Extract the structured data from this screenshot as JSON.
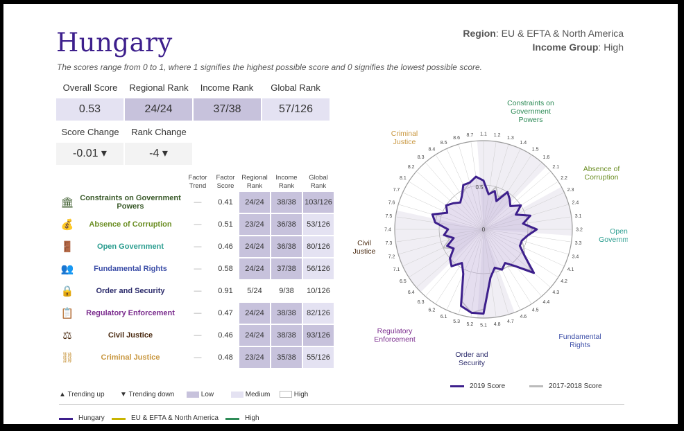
{
  "country": "Hungary",
  "region_label": "Region",
  "region_value": ": EU & EFTA & North America",
  "income_label": "Income Group",
  "income_value": ": High",
  "note": "The scores range from 0 to 1, where 1 signifies the highest possible score and 0 signifies the lowest possible score.",
  "summary": {
    "headers": [
      "Overall Score",
      "Regional Rank",
      "Income Rank",
      "Global Rank"
    ],
    "values": [
      "0.53",
      "24/24",
      "37/38",
      "57/126"
    ],
    "change_headers": [
      "Score Change",
      "Rank Change"
    ],
    "change_values": [
      "-0.01 ▾",
      "-4 ▾"
    ]
  },
  "table": {
    "headers": [
      "Factor Trend",
      "Factor Score",
      "Regional Rank",
      "Income Rank",
      "Global Rank"
    ],
    "rows": [
      {
        "name": "Constraints on Government Powers",
        "icon": "government-building-icon",
        "color": "#3a5a2a",
        "trend": "—",
        "score": "0.41",
        "regional": "24/24",
        "income": "38/38",
        "global": "103/126",
        "levels": [
          "low",
          "low",
          "low"
        ]
      },
      {
        "name": "Absence of Corruption",
        "icon": "money-bag-icon",
        "color": "#6b8e23",
        "trend": "—",
        "score": "0.51",
        "regional": "23/24",
        "income": "36/38",
        "global": "53/126",
        "levels": [
          "low",
          "low",
          "medium"
        ]
      },
      {
        "name": "Open Government",
        "icon": "open-door-icon",
        "color": "#2a9d8f",
        "trend": "—",
        "score": "0.46",
        "regional": "24/24",
        "income": "36/38",
        "global": "80/126",
        "levels": [
          "low",
          "low",
          "medium"
        ]
      },
      {
        "name": "Fundamental Rights",
        "icon": "people-icon",
        "color": "#3d4fa8",
        "trend": "—",
        "score": "0.58",
        "regional": "24/24",
        "income": "37/38",
        "global": "56/126",
        "levels": [
          "low",
          "low",
          "medium"
        ]
      },
      {
        "name": "Order and Security",
        "icon": "padlock-icon",
        "color": "#2b2b6b",
        "trend": "—",
        "score": "0.91",
        "regional": "5/24",
        "income": "9/38",
        "global": "10/126",
        "levels": [
          "high",
          "high",
          "high"
        ]
      },
      {
        "name": "Regulatory Enforcement",
        "icon": "clipboard-icon",
        "color": "#7b2d8e",
        "trend": "—",
        "score": "0.47",
        "regional": "24/24",
        "income": "38/38",
        "global": "82/126",
        "levels": [
          "low",
          "low",
          "medium"
        ]
      },
      {
        "name": "Civil Justice",
        "icon": "scales-icon",
        "color": "#4a2a10",
        "trend": "—",
        "score": "0.46",
        "regional": "24/24",
        "income": "38/38",
        "global": "93/126",
        "levels": [
          "low",
          "low",
          "low"
        ]
      },
      {
        "name": "Criminal Justice",
        "icon": "handcuffs-icon",
        "color": "#c8963e",
        "trend": "—",
        "score": "0.48",
        "regional": "23/24",
        "income": "35/38",
        "global": "55/126",
        "levels": [
          "low",
          "low",
          "medium"
        ]
      }
    ]
  },
  "legend_levels": [
    {
      "label": "Trending up",
      "icon": "triangle-up-icon"
    },
    {
      "label": "Trending down",
      "icon": "triangle-down-icon"
    },
    {
      "label": "Low",
      "color": "#c7c2dc"
    },
    {
      "label": "Medium",
      "color": "#e4e2f2"
    },
    {
      "label": "High",
      "color": "#ffffff"
    }
  ],
  "legend_lines": [
    {
      "label": "Hungary",
      "color": "#3d1f8c"
    },
    {
      "label": "EU & EFTA & North America",
      "color": "#c8b400"
    },
    {
      "label": "High",
      "color": "#2e8b57"
    }
  ],
  "chart_data": {
    "type": "radar",
    "axis_groups": [
      {
        "label": "Constraints on Government Powers",
        "color": "#2e8b57"
      },
      {
        "label": "Absence of Corruption",
        "color": "#6b8e23"
      },
      {
        "label": "Open Government",
        "color": "#2a9d8f"
      },
      {
        "label": "Fundamental Rights",
        "color": "#3d4fa8"
      },
      {
        "label": "Order and Security",
        "color": "#2b2b6b"
      },
      {
        "label": "Regulatory Enforcement",
        "color": "#7b2d8e"
      },
      {
        "label": "Civil Justice",
        "color": "#4a2a10"
      },
      {
        "label": "Criminal Justice",
        "color": "#c8963e"
      }
    ],
    "tick_labels": [
      "1.1",
      "1.2",
      "1.3",
      "1.4",
      "1.5",
      "1.6",
      "2.1",
      "2.2",
      "2.3",
      "2.4",
      "3.1",
      "3.2",
      "3.3",
      "3.4",
      "4.1",
      "4.2",
      "4.3",
      "4.4",
      "4.5",
      "4.6",
      "4.7",
      "4.8",
      "5.1",
      "5.2",
      "5.3",
      "6.1",
      "6.2",
      "6.3",
      "6.4",
      "6.5",
      "7.1",
      "7.2",
      "7.3",
      "7.4",
      "7.5",
      "7.6",
      "7.7",
      "8.1",
      "8.2",
      "8.3",
      "8.4",
      "8.5",
      "8.6",
      "8.7"
    ],
    "center_label": "0",
    "ring_label": "0.5",
    "series": [
      {
        "name": "2019 Score",
        "color": "#3d1f8c",
        "values": [
          0.55,
          0.4,
          0.45,
          0.35,
          0.5,
          0.45,
          0.4,
          0.5,
          0.4,
          0.55,
          0.45,
          0.6,
          0.5,
          0.45,
          0.45,
          0.55,
          0.75,
          0.55,
          0.45,
          0.5,
          0.45,
          0.55,
          0.95,
          0.95,
          0.9,
          0.55,
          0.45,
          0.55,
          0.5,
          0.4,
          0.45,
          0.35,
          0.45,
          0.4,
          0.55,
          0.6,
          0.45,
          0.5,
          0.45,
          0.4,
          0.45,
          0.55,
          0.55,
          0.6
        ]
      },
      {
        "name": "2017-2018 Score",
        "color": "#bbbbbb",
        "values": [
          0.55,
          0.4,
          0.5,
          0.4,
          0.5,
          0.45,
          0.4,
          0.5,
          0.4,
          0.55,
          0.45,
          0.55,
          0.5,
          0.45,
          0.5,
          0.55,
          0.7,
          0.55,
          0.5,
          0.5,
          0.45,
          0.55,
          0.9,
          0.95,
          0.85,
          0.55,
          0.45,
          0.55,
          0.5,
          0.4,
          0.5,
          0.4,
          0.45,
          0.4,
          0.55,
          0.55,
          0.45,
          0.5,
          0.45,
          0.4,
          0.45,
          0.5,
          0.55,
          0.6
        ]
      }
    ]
  }
}
